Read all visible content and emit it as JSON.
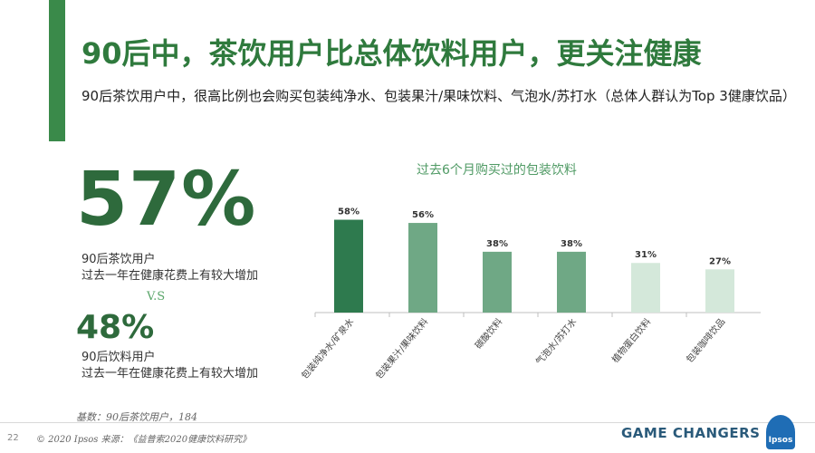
{
  "header": {
    "title": "90后中，茶饮用户比总体饮料用户，更关注健康",
    "subtitle": "90后茶饮用户中，很高比例也会购买包装纯净水、包装果汁/果味饮料、气泡水/苏打水（总体人群认为Top 3健康饮品）"
  },
  "stats": {
    "primary_value": "57%",
    "primary_desc_line1": "90后茶饮用户",
    "primary_desc_line2": "过去一年在健康花费上有较大增加",
    "vs": "V.S",
    "secondary_value": "48%",
    "secondary_desc_line1": "90后饮料用户",
    "secondary_desc_line2": "过去一年在健康花费上有较大增加"
  },
  "chart_data": {
    "type": "bar",
    "title": "过去6个月购买过的包装饮料",
    "categories": [
      "包装纯净水/矿泉水",
      "包装果汁/果味饮料",
      "碳酸饮料",
      "气泡水/苏打水",
      "植物蛋白饮料",
      "包装咖啡饮品"
    ],
    "values": [
      58,
      56,
      38,
      38,
      31,
      27
    ],
    "value_labels": [
      "58%",
      "56%",
      "38%",
      "38%",
      "31%",
      "27%"
    ],
    "colors": [
      "#2e7a4e",
      "#6fa885",
      "#6fa885",
      "#6fa885",
      "#d4e8da",
      "#d4e8da"
    ],
    "xlabel": "",
    "ylabel": "",
    "ylim": [
      0,
      60
    ],
    "grid": false
  },
  "footer": {
    "base_note": "基数：90后茶饮用户，184",
    "page_number": "22",
    "copyright": "© 2020 Ipsos 来源：《益普索2020健康饮料研究》",
    "brand_tagline": "GAME CHANGERS",
    "logo_text": "Ipsos"
  }
}
